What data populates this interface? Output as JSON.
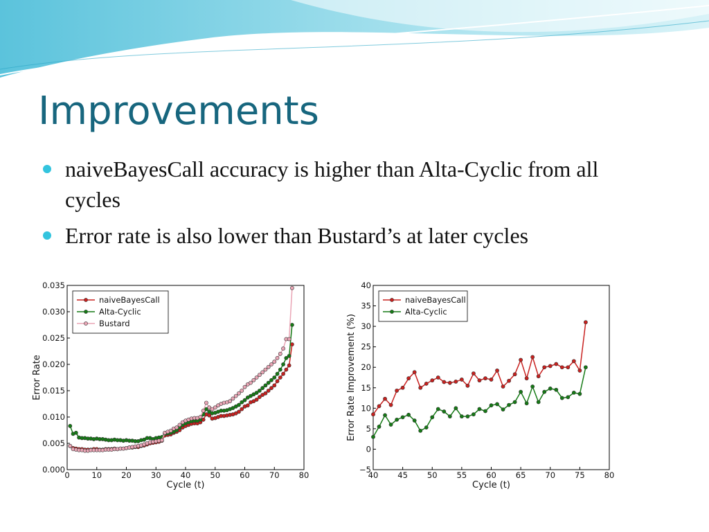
{
  "title": "Improvements",
  "bullets": [
    "naiveBayesCall accuracy is higher than Alta-Cyclic from all cycles",
    "Error rate is also lower than Bustard’s at later cycles"
  ],
  "chart_data": [
    {
      "type": "line",
      "xlabel": "Cycle (t)",
      "ylabel": "Error Rate",
      "legend": "upper left",
      "grid": false,
      "xlim": [
        0,
        80
      ],
      "xticks": [
        0,
        10,
        20,
        30,
        40,
        50,
        60,
        70,
        80
      ],
      "ylim": [
        0,
        0.035
      ],
      "yticks": [
        {
          "value": 0,
          "label": "0.000"
        },
        0.005,
        {
          "value": 0.01,
          "label": "0.010"
        },
        0.015,
        {
          "value": 0.02,
          "label": "0.020"
        },
        0.025,
        {
          "value": 0.03,
          "label": "0.030"
        },
        0.035
      ],
      "x": [
        1,
        2,
        3,
        4,
        5,
        6,
        7,
        8,
        9,
        10,
        11,
        12,
        13,
        14,
        15,
        16,
        17,
        18,
        19,
        20,
        21,
        22,
        23,
        24,
        25,
        26,
        27,
        28,
        29,
        30,
        31,
        32,
        33,
        34,
        35,
        36,
        37,
        38,
        39,
        40,
        41,
        42,
        43,
        44,
        45,
        46,
        47,
        48,
        49,
        50,
        51,
        52,
        53,
        54,
        55,
        56,
        57,
        58,
        59,
        60,
        61,
        62,
        63,
        64,
        65,
        66,
        67,
        68,
        69,
        70,
        71,
        72,
        73,
        74,
        75,
        76
      ],
      "series": [
        {
          "name": "naiveBayesCall",
          "color": "#c8201e",
          "values": [
            0.0045,
            0.0041,
            0.004,
            0.0039,
            0.0039,
            0.0038,
            0.0038,
            0.0038,
            0.0039,
            0.0039,
            0.0038,
            0.0038,
            0.0039,
            0.0039,
            0.0039,
            0.004,
            0.0039,
            0.004,
            0.004,
            0.0041,
            0.0042,
            0.0042,
            0.0043,
            0.0043,
            0.0045,
            0.0046,
            0.0048,
            0.005,
            0.0051,
            0.0052,
            0.0053,
            0.0055,
            0.0065,
            0.0066,
            0.0067,
            0.007,
            0.0072,
            0.0075,
            0.008,
            0.0083,
            0.0085,
            0.0087,
            0.0088,
            0.0088,
            0.009,
            0.0095,
            0.0105,
            0.0103,
            0.0097,
            0.0098,
            0.01,
            0.0102,
            0.0102,
            0.0103,
            0.0104,
            0.0105,
            0.0107,
            0.011,
            0.0115,
            0.012,
            0.0122,
            0.0128,
            0.013,
            0.0133,
            0.0138,
            0.0142,
            0.0145,
            0.015,
            0.0155,
            0.016,
            0.0168,
            0.0175,
            0.0182,
            0.019,
            0.0198,
            0.0238
          ]
        },
        {
          "name": "Alta-Cyclic",
          "color": "#157a15",
          "values": [
            0.0083,
            0.0068,
            0.007,
            0.0061,
            0.006,
            0.006,
            0.0059,
            0.0059,
            0.0058,
            0.0059,
            0.0058,
            0.0058,
            0.0057,
            0.0056,
            0.0056,
            0.0057,
            0.0056,
            0.0056,
            0.0055,
            0.0056,
            0.0055,
            0.0055,
            0.0054,
            0.0054,
            0.0056,
            0.0057,
            0.006,
            0.006,
            0.0058,
            0.006,
            0.0061,
            0.0062,
            0.0068,
            0.0069,
            0.007,
            0.0072,
            0.0075,
            0.008,
            0.0085,
            0.0088,
            0.009,
            0.0092,
            0.0093,
            0.0093,
            0.0095,
            0.0105,
            0.0115,
            0.011,
            0.0107,
            0.0108,
            0.011,
            0.0112,
            0.0112,
            0.0113,
            0.0115,
            0.0117,
            0.012,
            0.0123,
            0.0128,
            0.0132,
            0.0137,
            0.014,
            0.0143,
            0.0146,
            0.015,
            0.0155,
            0.016,
            0.0165,
            0.017,
            0.0175,
            0.0182,
            0.019,
            0.02,
            0.0212,
            0.0216,
            0.0275
          ]
        },
        {
          "name": "Bustard",
          "color": "#eaa6b6",
          "values": [
            0.0045,
            0.0039,
            0.0038,
            0.0037,
            0.0037,
            0.0036,
            0.0036,
            0.0037,
            0.0037,
            0.0037,
            0.0037,
            0.0037,
            0.0038,
            0.0038,
            0.0038,
            0.0039,
            0.0039,
            0.004,
            0.004,
            0.0041,
            0.0042,
            0.0043,
            0.0044,
            0.0045,
            0.0046,
            0.0048,
            0.005,
            0.0052,
            0.0053,
            0.0054,
            0.0055,
            0.0056,
            0.007,
            0.0072,
            0.0074,
            0.0078,
            0.008,
            0.0085,
            0.009,
            0.0093,
            0.0095,
            0.0097,
            0.0098,
            0.0098,
            0.01,
            0.0112,
            0.0127,
            0.0118,
            0.0115,
            0.0118,
            0.0122,
            0.0125,
            0.0127,
            0.0128,
            0.013,
            0.0135,
            0.014,
            0.0145,
            0.015,
            0.0157,
            0.0162,
            0.0165,
            0.017,
            0.0175,
            0.018,
            0.0185,
            0.019,
            0.0195,
            0.02,
            0.0205,
            0.0212,
            0.022,
            0.023,
            0.0248,
            0.0248,
            0.0345
          ]
        }
      ]
    },
    {
      "type": "line",
      "xlabel": "Cycle (t)",
      "ylabel": "Error Rate Improvement (%)",
      "legend": "upper left",
      "grid": false,
      "xlim": [
        40,
        80
      ],
      "xticks": [
        40,
        45,
        50,
        55,
        60,
        65,
        70,
        75,
        80
      ],
      "ylim": [
        -5,
        40
      ],
      "yticks": [
        {
          "value": -5,
          "label": "−5"
        },
        0,
        5,
        10,
        15,
        20,
        25,
        30,
        35,
        40
      ],
      "x": [
        40,
        41,
        42,
        43,
        44,
        45,
        46,
        47,
        48,
        49,
        50,
        51,
        52,
        53,
        54,
        55,
        56,
        57,
        58,
        59,
        60,
        61,
        62,
        63,
        64,
        65,
        66,
        67,
        68,
        69,
        70,
        71,
        72,
        73,
        74,
        75,
        76
      ],
      "series": [
        {
          "name": "naiveBayesCall",
          "color": "#c8201e",
          "values": [
            8.5,
            10.5,
            12.3,
            10.8,
            14.3,
            15,
            17.3,
            18.8,
            15,
            16,
            16.8,
            17.5,
            16.4,
            16.2,
            16.5,
            17,
            15.5,
            18.5,
            16.8,
            17.3,
            17,
            19.2,
            15.3,
            16.7,
            18.3,
            21.8,
            17.3,
            22.5,
            17.8,
            20,
            20.3,
            20.8,
            20,
            20,
            21.5,
            19.2,
            31
          ]
        },
        {
          "name": "Alta-Cyclic",
          "color": "#157a15",
          "values": [
            3,
            5.5,
            8.3,
            6,
            7.2,
            7.8,
            8.4,
            7,
            4.5,
            5.3,
            7.8,
            9.8,
            9.2,
            8,
            10,
            8,
            8,
            8.5,
            9.8,
            9.3,
            10.7,
            11,
            9.7,
            10.8,
            11.5,
            14,
            11.2,
            15.3,
            11.5,
            14,
            14.8,
            14.5,
            12.5,
            12.7,
            13.8,
            13.5,
            20
          ]
        }
      ]
    }
  ]
}
